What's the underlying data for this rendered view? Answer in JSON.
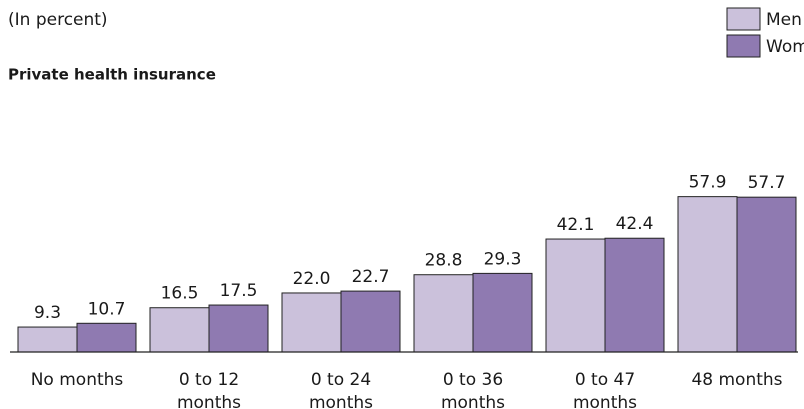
{
  "chart_data": {
    "type": "bar",
    "subtitle": "(In percent)",
    "title": "Private health insurance",
    "categories": [
      "No months",
      "0 to 12\nmonths",
      "0 to 24\nmonths",
      "0 to 36\nmonths",
      "0 to 47\nmonths",
      "48 months"
    ],
    "series": [
      {
        "name": "Men",
        "color": "#cbc1db",
        "values": [
          9.3,
          16.5,
          22,
          28.8,
          42.1,
          57.9
        ],
        "value_labels": [
          "9.3",
          "16.5",
          "22.0",
          "28.8",
          "42.1",
          "57.9"
        ]
      },
      {
        "name": "Women",
        "color": "#8f7ab1",
        "values": [
          10.7,
          17.5,
          22.7,
          29.3,
          42.4,
          57.7
        ],
        "value_labels": [
          "10.7",
          "17.5",
          "22.7",
          "29.3",
          "42.4",
          "57.7"
        ]
      }
    ],
    "ylim": [
      0,
      60
    ]
  }
}
